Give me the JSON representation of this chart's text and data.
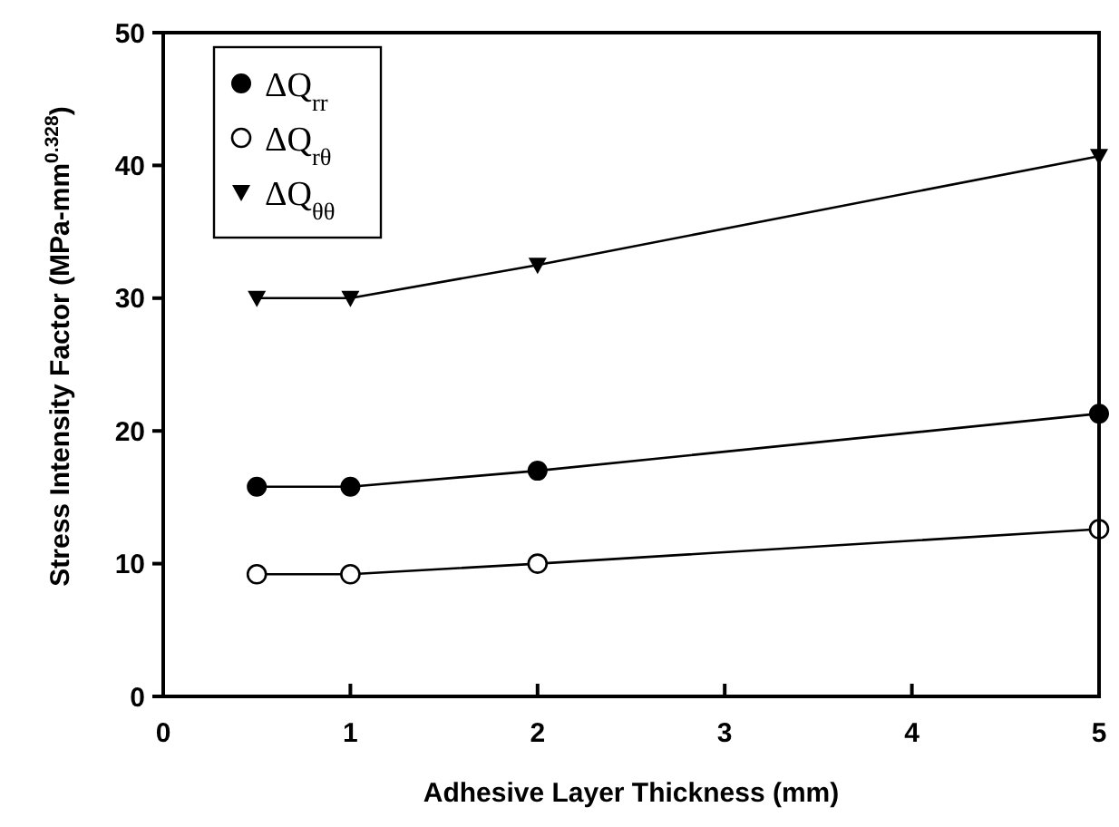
{
  "chart_data": {
    "type": "line",
    "xlabel": "Adhesive Layer Thickness (mm)",
    "ylabel": "Stress Intensity Factor (MPa-mm$^{0.328}$)",
    "x": [
      0.5,
      1,
      2,
      5
    ],
    "series": [
      {
        "name": "ΔQ$_{rr}$",
        "color": "#000000",
        "marker": "circle",
        "values": [
          15.8,
          15.8,
          17,
          21.3
        ]
      },
      {
        "name": "ΔQ$_{rθ}$",
        "color": "#000000",
        "marker": "circle-open",
        "values": [
          9.2,
          9.2,
          10,
          12.6
        ]
      },
      {
        "name": "ΔQ$_{θθ}$",
        "color": "#000000",
        "marker": "triangle-down",
        "values": [
          30,
          30,
          32.5,
          40.7
        ]
      }
    ],
    "xlim": [
      0,
      5
    ],
    "xticks": [
      0,
      1,
      2,
      3,
      4,
      5
    ],
    "ylim": [
      0,
      50
    ],
    "yticks": [
      0,
      10,
      20,
      30,
      40,
      50
    ],
    "grid": false,
    "legend": "top left",
    "line_style": "solid"
  }
}
